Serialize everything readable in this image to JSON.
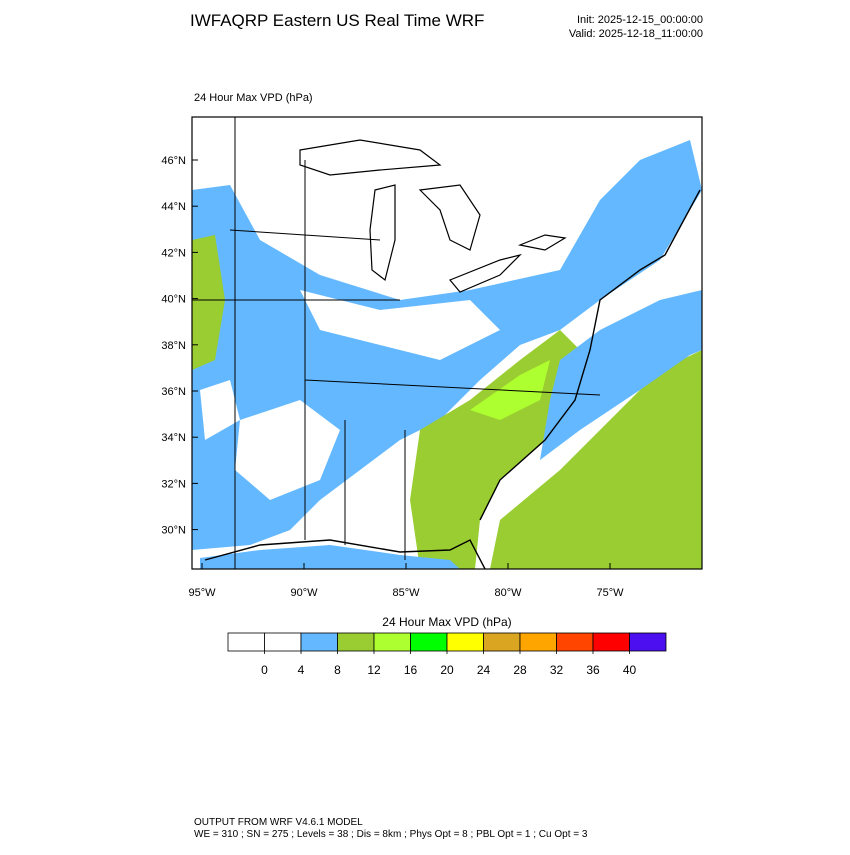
{
  "header": {
    "title": "IWFAQRP Eastern US Real Time WRF",
    "init": "Init: 2025-12-15_00:00:00",
    "valid": "Valid: 2025-12-18_11:00:00"
  },
  "map": {
    "label": "24 Hour Max VPD   (hPa)",
    "lat_ticks": [
      {
        "value": 46,
        "label": "46°N"
      },
      {
        "value": 44,
        "label": "44°N"
      },
      {
        "value": 42,
        "label": "42°N"
      },
      {
        "value": 40,
        "label": "40°N"
      },
      {
        "value": 38,
        "label": "38°N"
      },
      {
        "value": 36,
        "label": "36°N"
      },
      {
        "value": 34,
        "label": "34°N"
      },
      {
        "value": 32,
        "label": "32°N"
      },
      {
        "value": 30,
        "label": "30°N"
      }
    ],
    "lon_ticks": [
      {
        "value": -95,
        "label": "95°W"
      },
      {
        "value": -90,
        "label": "90°W"
      },
      {
        "value": -85,
        "label": "85°W"
      },
      {
        "value": -80,
        "label": "80°W"
      },
      {
        "value": -75,
        "label": "75°W"
      }
    ]
  },
  "colorbar": {
    "title": "24 Hour Max VPD  (hPa)",
    "colors": [
      "#ffffff",
      "#ffffff",
      "#63b8ff",
      "#9acd32",
      "#adff2f",
      "#00ff00",
      "#ffff00",
      "#daa520",
      "#ffa500",
      "#ff4500",
      "#ff0000",
      "#4b0ff0"
    ],
    "levels": [
      0,
      4,
      8,
      12,
      16,
      20,
      24,
      28,
      32,
      36,
      40
    ]
  },
  "footer": {
    "line1": "OUTPUT FROM WRF V4.6.1 MODEL",
    "line2": "WE = 310 ; SN = 275 ; Levels = 38 ; Dis = 8km ; Phys Opt = 8 ; PBL Opt = 1 ; Cu Opt = 3"
  }
}
